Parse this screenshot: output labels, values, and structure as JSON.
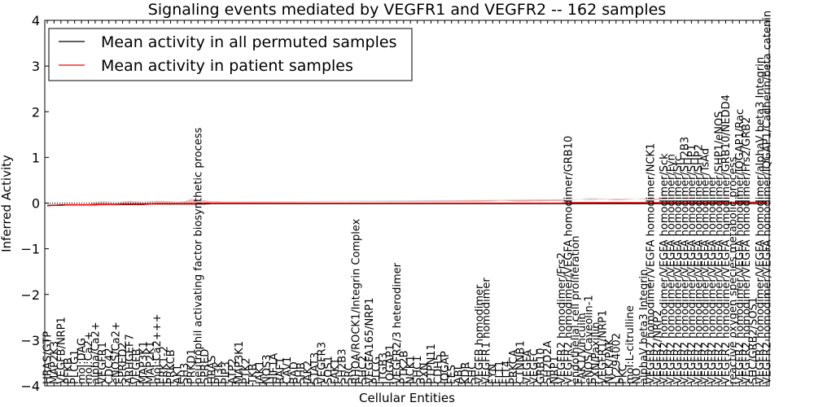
{
  "chart_data": {
    "type": "line",
    "title": "Signaling events mediated by VEGFR1 and VEGFR2 -- 162 samples",
    "xlabel": "Cellular Entities",
    "ylabel": "Inferred Activity",
    "ylim": [
      -4,
      4
    ],
    "yticks": [
      "−4",
      "−3",
      "−2",
      "−1",
      "0",
      "1",
      "2",
      "3",
      "4"
    ],
    "grid": false,
    "legend_position": "top-left",
    "categories": [
      "HRAS/GTP",
      "MAP2K3",
      "VEGFB/NRP1",
      "PFKB",
      "PLCG1",
      "mol:DAG",
      "mol:Ca2+",
      "alpha/Ca2+",
      "VEGFR1",
      "CDC42",
      "eNOS/Ca2+",
      "SPRED2",
      "ARHGEF7",
      "VEGFB",
      "MAP3K1",
      "MAP2K1",
      "mol:Ca2+++",
      "ERK1-2",
      "PRKCB",
      "AKT",
      "SH3",
      "PRKD1",
      "neutrophil activating factor biosynthetic process",
      "SPRED",
      "HRAS",
      "PI3K",
      "PIP3",
      "ATP2",
      "MAP3K1",
      "PTK2",
      "TKB",
      "JAK1",
      "NOS3",
      "HIF1A",
      "RAF1",
      "CAV1",
      "BAD",
      "SHB",
      "JAK2",
      "STAT3",
      "VEGFR3",
      "SOS1",
      "FAK1",
      "SH2B3",
      "SRC",
      "RHOA/ROCK1/Integrin Complex",
      "SHC2",
      "VEGFA165/NRP1",
      "PLCG",
      "ITGB3",
      "IQGAP1",
      "VEGFR2/3 heterodimer",
      "PTK2B",
      "NCK1",
      "SHC1",
      "PXN",
      "PTPN11",
      "CDH5",
      "IQGAP",
      "FES",
      "ABL",
      "KDR",
      "SHC",
      "VEGFB homodimer",
      "VEGFR1 homodimer",
      "FYN",
      "FLT1",
      "FLT4",
      "PRKCA",
      "CTNNB1",
      "VEGFA",
      "VEGFC",
      "GRB10",
      "SH2D2A",
      "NRP1",
      "VEGFR2 homodimer/Frs2",
      "VEGFR2 homodimer/VEGFA homodimer/GRB10",
      "endothelial cell proliferation",
      "FAK1/Vinculin",
      "eNOS/Caveolin-1",
      "PXN/Paxillin",
      "VEGFR1/NRP1",
      "NCK/PAK",
      "LY294002",
      "PKC",
      "mol:L-citrulline",
      "NO",
      "alphaV beta3 Integrin",
      "VEGFR2 homodimer/VEGFA homodimer/NCK1",
      "VEGFR2/NRP2",
      "VEGFR2 homodimer/VEGFA homodimer/Sck",
      "VEGFR2 homodimer/VEGFA homodimer/Fyn",
      "VEGFR2 homodimer/VEGFA homodimer/Src",
      "VEGFR2 homodimer/VEGFA homodimer/SH2B3",
      "VEGFR2 homodimer/VEGFA homodimer/SHP1",
      "VEGFR2 homodimer/VEGFA homodimer/SHP2",
      "VEGFR2 homodimer/VEGFA homodimer/TsAd",
      "VEGFR2 homodimer/VEGFA homodimer",
      "VEGFR2 homodimer/VEGFA homodimer/SHP1/eNOS",
      "VEGFR2 homodimer/VEGFA homodimer/GRB10/NEDD4",
      "reactive oxygen species metabolic process",
      "VEGFR2 homodimer/VEGFA homodimer/IQGAP1/Rac",
      "VEGFR2 homodimer/VEGFA homodimer/Frs2/GRB2",
      "SHC/GRB2/SOS1",
      "VEGFR2 homodimer/VEGFA homodimer/alphaV beta3 Integrin",
      "VEGFR2 homodimer/VEGFA homodimer/IQGAP1/Cadherin/beta catenin"
    ],
    "series": [
      {
        "name": "Mean activity in all permuted samples",
        "color": "#000000",
        "values": [
          -0.05,
          -0.05,
          -0.04,
          -0.04,
          -0.04,
          -0.04,
          -0.04,
          -0.04,
          -0.03,
          -0.03,
          -0.03,
          -0.03,
          -0.03,
          -0.03,
          -0.03,
          -0.02,
          -0.02,
          -0.02,
          -0.02,
          -0.02,
          -0.02,
          -0.02,
          -0.02,
          -0.02,
          -0.01,
          -0.01,
          -0.01,
          -0.01,
          -0.01,
          -0.01,
          -0.01,
          -0.01,
          -0.01,
          -0.01,
          -0.01,
          -0.01,
          -0.01,
          -0.01,
          -0.01,
          -0.01,
          -0.01,
          -0.01,
          -0.01,
          -0.01,
          -0.01,
          -0.01,
          -0.01,
          -0.01,
          -0.01,
          -0.01,
          -0.01,
          -0.01,
          -0.01,
          -0.01,
          -0.01,
          -0.01,
          -0.01,
          -0.01,
          -0.01,
          -0.01,
          -0.01,
          -0.01,
          -0.01,
          -0.01,
          -0.01,
          -0.01,
          -0.01,
          -0.01,
          -0.01,
          -0.01,
          -0.01,
          -0.01,
          -0.01,
          -0.01,
          -0.01,
          -0.01,
          -0.01,
          -0.01,
          -0.01,
          -0.01,
          -0.01,
          -0.01,
          -0.01,
          -0.01,
          -0.01,
          -0.01,
          -0.01,
          -0.01,
          -0.01,
          -0.01,
          -0.01,
          -0.01,
          -0.01,
          -0.01,
          -0.01,
          -0.01,
          -0.01,
          -0.01,
          -0.01,
          -0.01,
          -0.01,
          -0.01,
          -0.01,
          -0.01,
          -0.01,
          -0.01
        ]
      },
      {
        "name": "Mean activity in patient samples",
        "color": "#ff0000",
        "values": [
          -0.06,
          -0.05,
          -0.05,
          -0.04,
          -0.04,
          -0.04,
          -0.04,
          -0.03,
          -0.03,
          -0.03,
          -0.03,
          -0.02,
          -0.02,
          -0.02,
          -0.02,
          -0.02,
          -0.01,
          -0.01,
          -0.01,
          -0.01,
          -0.01,
          -0.01,
          -0.01,
          0.0,
          0.0,
          0.0,
          0.0,
          0.0,
          0.0,
          0.0,
          0.0,
          0.0,
          0.0,
          0.0,
          0.0,
          0.0,
          0.0,
          0.0,
          0.0,
          0.0,
          0.0,
          0.0,
          0.0,
          0.0,
          0.0,
          0.0,
          0.0,
          0.0,
          0.0,
          0.0,
          0.0,
          0.0,
          0.0,
          0.0,
          0.0,
          0.0,
          0.0,
          0.0,
          0.0,
          0.0,
          0.0,
          0.0,
          0.0,
          0.0,
          0.0,
          0.0,
          0.0,
          0.0,
          0.0,
          0.0,
          0.0,
          0.0,
          0.0,
          0.0,
          0.0,
          0.0,
          0.01,
          0.01,
          0.01,
          0.01,
          0.01,
          0.01,
          0.01,
          0.01,
          0.01,
          0.01,
          0.01,
          0.01,
          0.01,
          0.01,
          0.01,
          0.01,
          0.01,
          0.01,
          0.01,
          0.01,
          0.01,
          0.01,
          0.02,
          0.02,
          0.02,
          0.02,
          0.02,
          0.02,
          0.02,
          0.02
        ]
      }
    ],
    "permuted_band": [
      0.06,
      0.07,
      0.06,
      0.06,
      0.06,
      0.05,
      0.06,
      0.07,
      0.08,
      0.07,
      0.06,
      0.07,
      0.08,
      0.07,
      0.06,
      0.06,
      0.05,
      0.05,
      0.05,
      0.05,
      0.04,
      0.04,
      0.04,
      0.04,
      0.04,
      0.04,
      0.04,
      0.04,
      0.04,
      0.04,
      0.04,
      0.04,
      0.04,
      0.04,
      0.04,
      0.04,
      0.04,
      0.04,
      0.04,
      0.04,
      0.04,
      0.04,
      0.04,
      0.04,
      0.04,
      0.04,
      0.04,
      0.04,
      0.04,
      0.04,
      0.04,
      0.04,
      0.04,
      0.04,
      0.04,
      0.04,
      0.04,
      0.04,
      0.04,
      0.04,
      0.04,
      0.04,
      0.04,
      0.04,
      0.05,
      0.06,
      0.08,
      0.07,
      0.05,
      0.05,
      0.05,
      0.06,
      0.05,
      0.05,
      0.05,
      0.06,
      0.07,
      0.08,
      0.1,
      0.12,
      0.12,
      0.1,
      0.08,
      0.07,
      0.08,
      0.09,
      0.1,
      0.09,
      0.08,
      0.08,
      0.09,
      0.1,
      0.11,
      0.12,
      0.12,
      0.12,
      0.12,
      0.12,
      0.12,
      0.12,
      0.12,
      0.12,
      0.12,
      0.12,
      0.12
    ],
    "patient_band": [
      0.03,
      0.04,
      0.03,
      0.03,
      0.03,
      0.03,
      0.03,
      0.04,
      0.05,
      0.04,
      0.03,
      0.04,
      0.06,
      0.05,
      0.04,
      0.05,
      0.06,
      0.06,
      0.05,
      0.04,
      0.05,
      0.1,
      0.08,
      0.06,
      0.04,
      0.04,
      0.03,
      0.03,
      0.03,
      0.03,
      0.03,
      0.03,
      0.03,
      0.03,
      0.03,
      0.03,
      0.03,
      0.03,
      0.03,
      0.03,
      0.03,
      0.03,
      0.03,
      0.03,
      0.03,
      0.03,
      0.03,
      0.03,
      0.03,
      0.03,
      0.03,
      0.03,
      0.03,
      0.03,
      0.03,
      0.03,
      0.03,
      0.03,
      0.03,
      0.03,
      0.03,
      0.03,
      0.03,
      0.03,
      0.03,
      0.04,
      0.05,
      0.05,
      0.04,
      0.03,
      0.03,
      0.04,
      0.04,
      0.05,
      0.05,
      0.05,
      0.06,
      0.07,
      0.07,
      0.06,
      0.06,
      0.08,
      0.07,
      0.06,
      0.06,
      0.07,
      0.08,
      0.07,
      0.06,
      0.07,
      0.07,
      0.08,
      0.09,
      0.08,
      0.08,
      0.09,
      0.1,
      0.1,
      0.09,
      0.08,
      0.09,
      0.1,
      0.1,
      0.1,
      0.1
    ]
  }
}
